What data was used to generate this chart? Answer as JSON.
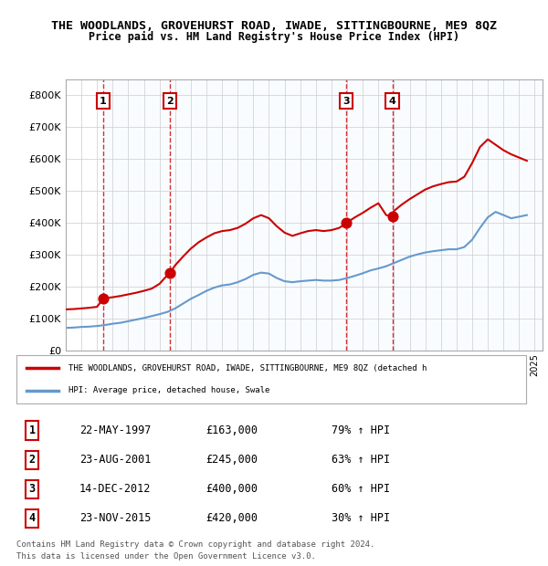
{
  "title": "THE WOODLANDS, GROVEHURST ROAD, IWADE, SITTINGBOURNE, ME9 8QZ",
  "subtitle": "Price paid vs. HM Land Registry's House Price Index (HPI)",
  "ylim": [
    0,
    850000
  ],
  "yticks": [
    0,
    100000,
    200000,
    300000,
    400000,
    500000,
    600000,
    700000,
    800000
  ],
  "ytick_labels": [
    "£0",
    "£100K",
    "£200K",
    "£300K",
    "£400K",
    "£500K",
    "£600K",
    "£700K",
    "£800K"
  ],
  "xlim_start": 1995.0,
  "xlim_end": 2025.5,
  "sale_dates": [
    1997.388,
    2001.644,
    2012.954,
    2015.896
  ],
  "sale_prices": [
    163000,
    245000,
    400000,
    420000
  ],
  "sale_labels": [
    "1",
    "2",
    "3",
    "4"
  ],
  "sale_color": "#cc0000",
  "hpi_color": "#6699cc",
  "legend_sale_label": "THE WOODLANDS, GROVEHURST ROAD, IWADE, SITTINGBOURNE, ME9 8QZ (detached h",
  "legend_hpi_label": "HPI: Average price, detached house, Swale",
  "footer_line1": "Contains HM Land Registry data © Crown copyright and database right 2024.",
  "footer_line2": "This data is licensed under the Open Government Licence v3.0.",
  "table_data": [
    [
      "1",
      "22-MAY-1997",
      "£163,000",
      "79% ↑ HPI"
    ],
    [
      "2",
      "23-AUG-2001",
      "£245,000",
      "63% ↑ HPI"
    ],
    [
      "3",
      "14-DEC-2012",
      "£400,000",
      "60% ↑ HPI"
    ],
    [
      "4",
      "23-NOV-2015",
      "£420,000",
      "30% ↑ HPI"
    ]
  ],
  "hpi_x": [
    1995.0,
    1995.5,
    1996.0,
    1996.5,
    1997.0,
    1997.5,
    1998.0,
    1998.5,
    1999.0,
    1999.5,
    2000.0,
    2000.5,
    2001.0,
    2001.5,
    2002.0,
    2002.5,
    2003.0,
    2003.5,
    2004.0,
    2004.5,
    2005.0,
    2005.5,
    2006.0,
    2006.5,
    2007.0,
    2007.5,
    2008.0,
    2008.5,
    2009.0,
    2009.5,
    2010.0,
    2010.5,
    2011.0,
    2011.5,
    2012.0,
    2012.5,
    2013.0,
    2013.5,
    2014.0,
    2014.5,
    2015.0,
    2015.5,
    2016.0,
    2016.5,
    2017.0,
    2017.5,
    2018.0,
    2018.5,
    2019.0,
    2019.5,
    2020.0,
    2020.5,
    2021.0,
    2021.5,
    2022.0,
    2022.5,
    2023.0,
    2023.5,
    2024.0,
    2024.5
  ],
  "hpi_y": [
    72000,
    73000,
    75000,
    76000,
    78000,
    81000,
    85000,
    88000,
    93000,
    98000,
    103000,
    109000,
    115000,
    122000,
    133000,
    148000,
    163000,
    175000,
    188000,
    198000,
    205000,
    208000,
    215000,
    225000,
    238000,
    245000,
    242000,
    228000,
    218000,
    215000,
    218000,
    220000,
    222000,
    220000,
    220000,
    222000,
    228000,
    235000,
    243000,
    252000,
    258000,
    265000,
    275000,
    285000,
    295000,
    302000,
    308000,
    312000,
    315000,
    318000,
    318000,
    325000,
    348000,
    385000,
    418000,
    435000,
    425000,
    415000,
    420000,
    425000
  ],
  "price_x": [
    1995.0,
    1995.5,
    1996.0,
    1996.5,
    1997.0,
    1997.388,
    1997.5,
    1998.0,
    1998.5,
    1999.0,
    1999.5,
    2000.0,
    2000.5,
    2001.0,
    2001.644,
    2001.5,
    2002.0,
    2002.5,
    2003.0,
    2003.5,
    2004.0,
    2004.5,
    2005.0,
    2005.5,
    2006.0,
    2006.5,
    2007.0,
    2007.5,
    2008.0,
    2008.5,
    2009.0,
    2009.5,
    2010.0,
    2010.5,
    2011.0,
    2011.5,
    2012.0,
    2012.5,
    2012.954,
    2013.0,
    2013.5,
    2014.0,
    2014.5,
    2015.0,
    2015.5,
    2015.896,
    2016.0,
    2016.5,
    2017.0,
    2017.5,
    2018.0,
    2018.5,
    2019.0,
    2019.5,
    2020.0,
    2020.5,
    2021.0,
    2021.5,
    2022.0,
    2022.5,
    2023.0,
    2023.5,
    2024.0,
    2024.5
  ],
  "price_y": [
    130000,
    131000,
    133000,
    135000,
    138000,
    163000,
    165000,
    168000,
    172000,
    177000,
    182000,
    188000,
    195000,
    210000,
    245000,
    232000,
    268000,
    295000,
    320000,
    340000,
    355000,
    368000,
    375000,
    378000,
    385000,
    398000,
    415000,
    425000,
    415000,
    390000,
    370000,
    360000,
    368000,
    375000,
    378000,
    375000,
    378000,
    385000,
    400000,
    402000,
    418000,
    432000,
    448000,
    462000,
    425000,
    420000,
    438000,
    458000,
    475000,
    490000,
    505000,
    515000,
    522000,
    528000,
    530000,
    545000,
    588000,
    638000,
    662000,
    645000,
    628000,
    615000,
    605000,
    595000
  ]
}
